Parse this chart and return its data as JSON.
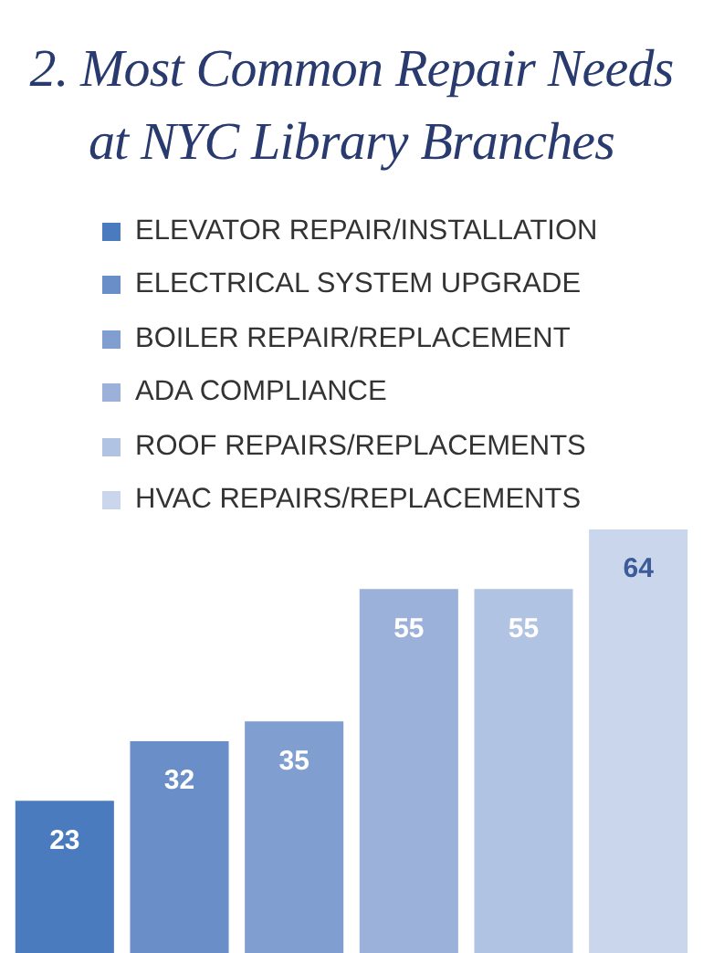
{
  "chart_data": {
    "type": "bar",
    "title": "2. Most Common Repair Needs at NYC Library Branches",
    "categories": [
      null
    ],
    "series": [
      {
        "name": "ELEVATOR REPAIR/INSTALLATION",
        "color": "#4a7bbf",
        "values": [
          23
        ]
      },
      {
        "name": "ELECTRICAL SYSTEM UPGRADE",
        "color": "#6a8fc8",
        "values": [
          32
        ]
      },
      {
        "name": "BOILER REPAIR/REPLACEMENT",
        "color": "#809fd0",
        "values": [
          35
        ]
      },
      {
        "name": "ADA COMPLIANCE",
        "color": "#9bb1da",
        "values": [
          55
        ]
      },
      {
        "name": "ROOF REPAIRS/REPLACEMENTS",
        "color": "#b1c3e3",
        "values": [
          55
        ]
      },
      {
        "name": "HVAC REPAIRS/REPLACEMENTS",
        "color": "#cad6eb",
        "values": [
          64
        ]
      }
    ],
    "ylim": [
      0,
      64
    ],
    "data_labels": true,
    "legend": "top left",
    "tick_labels": false
  }
}
